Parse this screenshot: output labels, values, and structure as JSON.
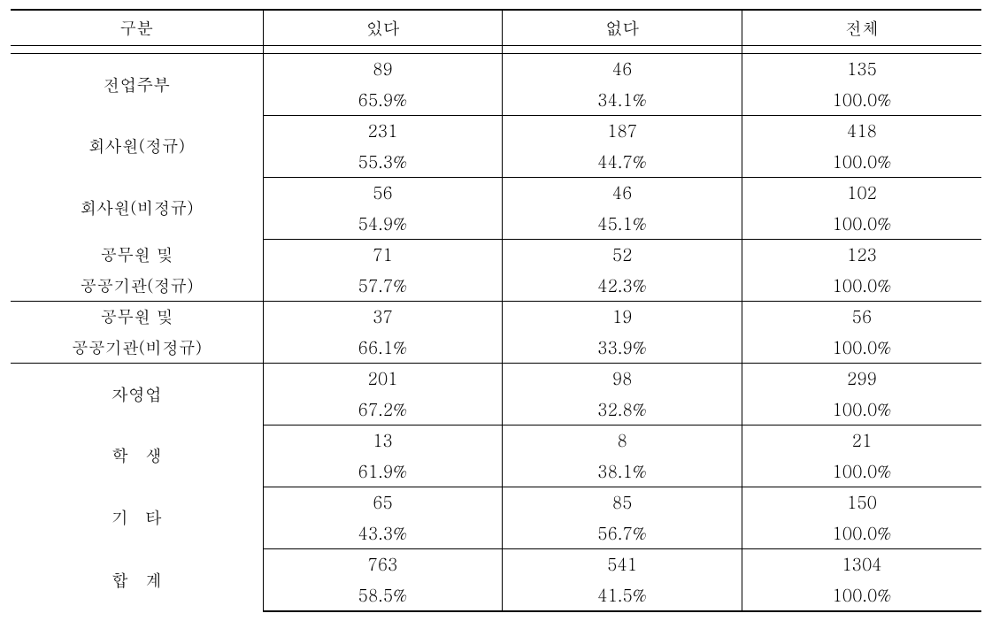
{
  "table": {
    "type": "table",
    "background_color": "#ffffff",
    "text_color": "#000000",
    "border_color": "#000000",
    "font_size_pt": 14,
    "columns": [
      {
        "label": "구분",
        "width_pct": 26
      },
      {
        "label": "있다",
        "width_pct": 24.67
      },
      {
        "label": "없다",
        "width_pct": 24.67
      },
      {
        "label": "전체",
        "width_pct": 24.66
      }
    ],
    "rows": [
      {
        "label": "전업주부",
        "yes_n": "89",
        "yes_p": "65.9%",
        "no_n": "46",
        "no_p": "34.1%",
        "tot_n": "135",
        "tot_p": "100.0%"
      },
      {
        "label": "회사원(정규)",
        "yes_n": "231",
        "yes_p": "55.3%",
        "no_n": "187",
        "no_p": "44.7%",
        "tot_n": "418",
        "tot_p": "100.0%"
      },
      {
        "label": "회사원(비정규)",
        "yes_n": "56",
        "yes_p": "54.9%",
        "no_n": "46",
        "no_p": "45.1%",
        "tot_n": "102",
        "tot_p": "100.0%"
      },
      {
        "label_l1": "공무원 및",
        "label_l2": "공공기관(정규)",
        "yes_n": "71",
        "yes_p": "57.7%",
        "no_n": "52",
        "no_p": "42.3%",
        "tot_n": "123",
        "tot_p": "100.0%"
      },
      {
        "label_l1": "공무원 및",
        "label_l2": "공공기관(비정규)",
        "yes_n": "37",
        "yes_p": "66.1%",
        "no_n": "19",
        "no_p": "33.9%",
        "tot_n": "56",
        "tot_p": "100.0%"
      },
      {
        "label": "자영업",
        "yes_n": "201",
        "yes_p": "67.2%",
        "no_n": "98",
        "no_p": "32.8%",
        "tot_n": "299",
        "tot_p": "100.0%"
      },
      {
        "label": "학　생",
        "yes_n": "13",
        "yes_p": "61.9%",
        "no_n": "8",
        "no_p": "38.1%",
        "tot_n": "21",
        "tot_p": "100.0%"
      },
      {
        "label": "기　타",
        "yes_n": "65",
        "yes_p": "43.3%",
        "no_n": "85",
        "no_p": "56.7%",
        "tot_n": "150",
        "tot_p": "100.0%"
      },
      {
        "label": "합　계",
        "yes_n": "763",
        "yes_p": "58.5%",
        "no_n": "541",
        "no_p": "41.5%",
        "tot_n": "1304",
        "tot_p": "100.0%"
      }
    ]
  }
}
